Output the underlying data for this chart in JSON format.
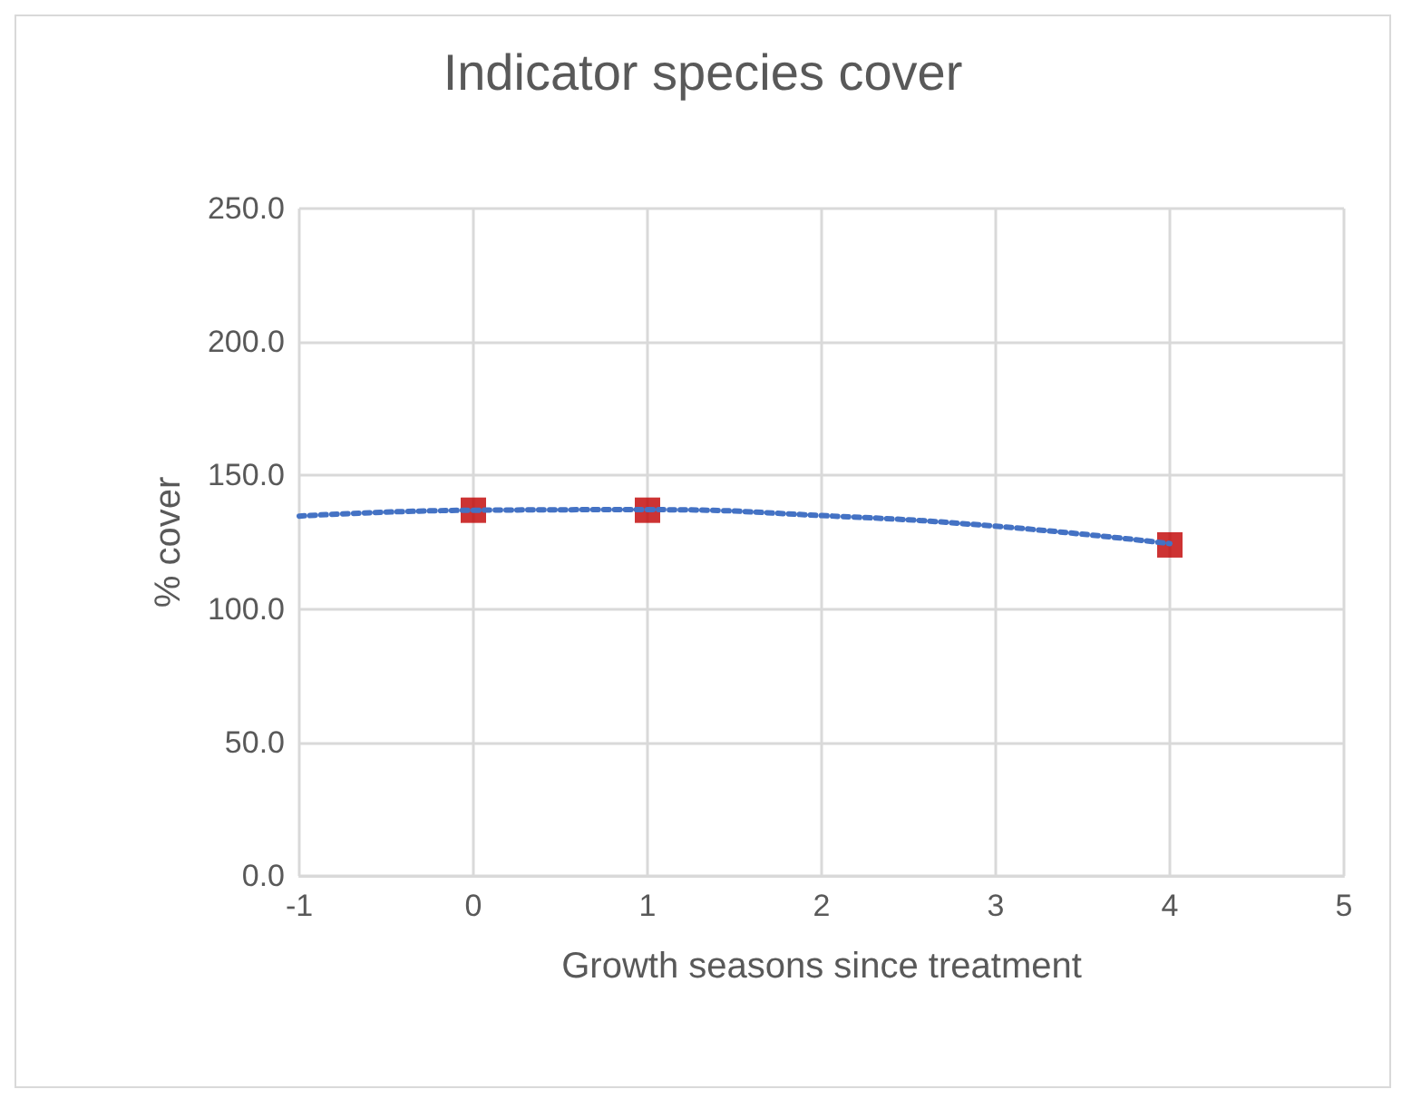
{
  "chart_data": {
    "type": "scatter",
    "title": "Indicator species cover",
    "xlabel": "Growth seasons since treatment",
    "ylabel": "% cover",
    "xlim": [
      -1,
      5
    ],
    "xticks": [
      -1,
      0,
      1,
      2,
      3,
      4,
      5
    ],
    "ylim": [
      0,
      250
    ],
    "yticks": [
      {
        "value": 0,
        "label": "0.0"
      },
      {
        "value": 50,
        "label": "50.0"
      },
      {
        "value": 100,
        "label": "100.0"
      },
      {
        "value": 150,
        "label": "150.0"
      },
      {
        "value": 200,
        "label": "200.0"
      },
      {
        "value": 250,
        "label": "250.0"
      }
    ],
    "grid": true,
    "series": [
      {
        "type": "line",
        "color": "#4472c4",
        "line_style": "dotted",
        "marker": "none",
        "x": [
          -1,
          0,
          1,
          2,
          3,
          4
        ],
        "values": [
          134.8,
          137,
          137.2,
          135,
          131,
          124.5
        ]
      },
      {
        "color": "#c00000",
        "marker": "square",
        "x": [
          0,
          1,
          4
        ],
        "values": [
          137,
          137,
          124
        ]
      }
    ]
  }
}
